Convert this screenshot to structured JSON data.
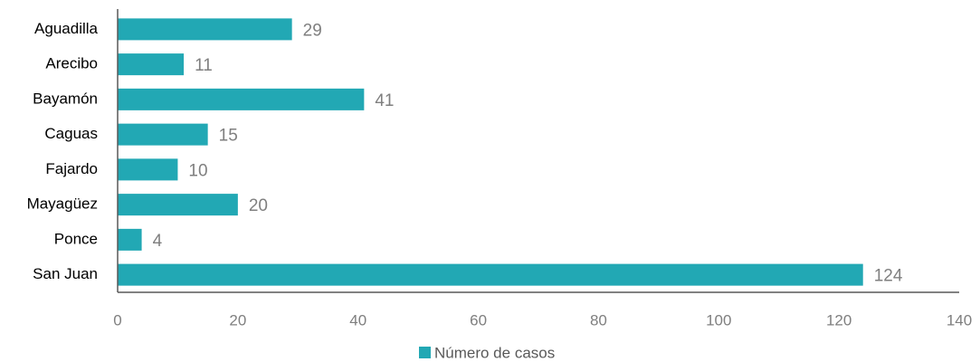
{
  "chart_data": {
    "type": "bar",
    "orientation": "horizontal",
    "categories": [
      "Aguadilla",
      "Arecibo",
      "Bayamón",
      "Caguas",
      "Fajardo",
      "Mayagüez",
      "Ponce",
      "San Juan"
    ],
    "series": [
      {
        "name": "Número de casos",
        "color": "#22a8b4",
        "values": [
          29,
          11,
          41,
          15,
          10,
          20,
          4,
          124
        ]
      }
    ],
    "xlim": [
      0,
      140
    ],
    "xticks": [
      0,
      20,
      40,
      60,
      80,
      100,
      120,
      140
    ],
    "grid": false,
    "legend": "bottom"
  }
}
